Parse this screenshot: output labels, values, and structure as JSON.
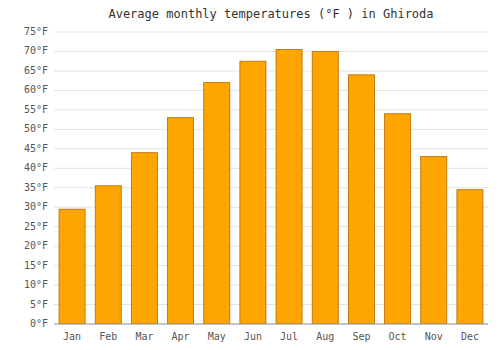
{
  "chart_data": {
    "type": "bar",
    "title": "Average monthly temperatures (°F ) in Ghiroda",
    "categories": [
      "Jan",
      "Feb",
      "Mar",
      "Apr",
      "May",
      "Jun",
      "Jul",
      "Aug",
      "Sep",
      "Oct",
      "Nov",
      "Dec"
    ],
    "values": [
      29.5,
      35.5,
      44.0,
      53.0,
      62.0,
      67.5,
      70.5,
      70.0,
      64.0,
      54.0,
      43.0,
      34.5
    ],
    "color": "#FFA500",
    "ylim": [
      0,
      75
    ],
    "yticks": [
      {
        "value": 0,
        "label": "0°F"
      },
      {
        "value": 5,
        "label": "5°F"
      },
      {
        "value": 10,
        "label": "10°F"
      },
      {
        "value": 15,
        "label": "15°F"
      },
      {
        "value": 20,
        "label": "20°F"
      },
      {
        "value": 25,
        "label": "25°F"
      },
      {
        "value": 30,
        "label": "30°F"
      },
      {
        "value": 35,
        "label": "35°F"
      },
      {
        "value": 40,
        "label": "40°F"
      },
      {
        "value": 45,
        "label": "45°F"
      },
      {
        "value": 50,
        "label": "50°F"
      },
      {
        "value": 55,
        "label": "55°F"
      },
      {
        "value": 60,
        "label": "60°F"
      },
      {
        "value": 65,
        "label": "65°F"
      },
      {
        "value": 70,
        "label": "70°F"
      },
      {
        "value": 75,
        "label": "75°F"
      }
    ],
    "grid": true
  }
}
